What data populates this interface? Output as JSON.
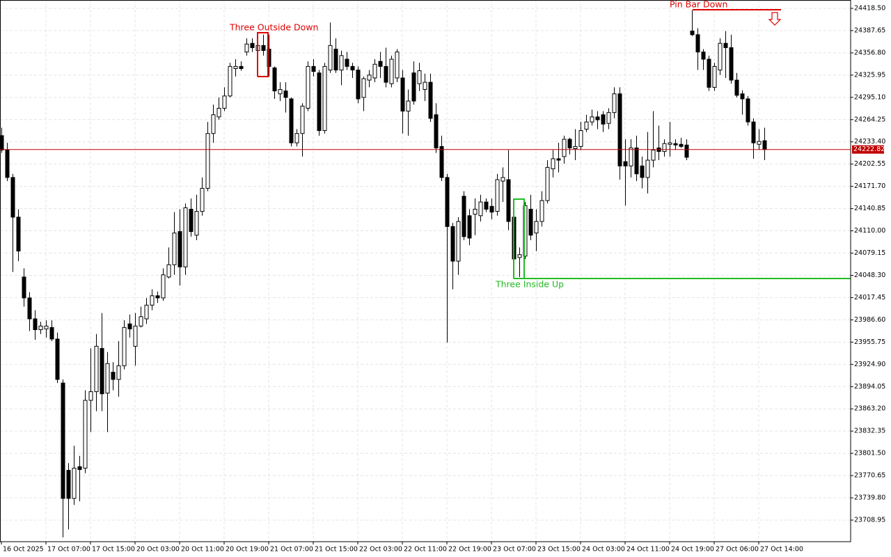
{
  "chart_data": {
    "type": "candlestick",
    "categories": [
      "16 Oct 2025",
      null,
      null,
      null,
      null,
      null,
      null,
      null,
      "17 Oct 07:00",
      null,
      null,
      null,
      null,
      null,
      null,
      null,
      "17 Oct 15:00",
      null,
      null,
      null,
      null,
      null,
      null,
      null,
      "20 Oct 03:00",
      null,
      null,
      null,
      null,
      null,
      null,
      null,
      "20 Oct 11:00",
      null,
      null,
      null,
      null,
      null,
      null,
      null,
      "20 Oct 19:00",
      null,
      null,
      null,
      null,
      null,
      null,
      null,
      "21 Oct 07:00",
      null,
      null,
      null,
      null,
      null,
      null,
      null,
      "21 Oct 15:00",
      null,
      null,
      null,
      null,
      null,
      null,
      null,
      "22 Oct 03:00",
      null,
      null,
      null,
      null,
      null,
      null,
      null,
      "22 Oct 11:00",
      null,
      null,
      null,
      null,
      null,
      null,
      null,
      "22 Oct 19:00",
      null,
      null,
      null,
      null,
      null,
      null,
      null,
      "23 Oct 07:00",
      null,
      null,
      null,
      null,
      null,
      null,
      null,
      "23 Oct 15:00",
      null,
      null,
      null,
      null,
      null,
      null,
      null,
      "24 Oct 03:00",
      null,
      null,
      null,
      null,
      null,
      null,
      null,
      "24 Oct 11:00",
      null,
      null,
      null,
      null,
      null,
      null,
      null,
      "24 Oct 19:00",
      null,
      null,
      null,
      null,
      null,
      null,
      null,
      "27 Oct 06:00",
      null,
      null,
      null,
      null,
      null,
      null,
      null,
      "27 Oct 14:00",
      null
    ],
    "open": [
      24242,
      24222,
      24184,
      24129,
      24046,
      24017,
      23988,
      23973,
      23974,
      23976,
      23960,
      23899,
      23778,
      23739,
      23783,
      23781,
      23875,
      23887,
      23947,
      23885,
      23914,
      23904,
      23923,
      23981,
      23950,
      23978,
      23988,
      24007,
      24020,
      24017,
      24046,
      24063,
      24109,
      24060,
      24140,
      24104,
      24137,
      24169,
      24245,
      24268,
      24280,
      24297,
      24335,
      24338,
      24358,
      24370,
      24360,
      24367,
      24362,
      24336,
      24300,
      24304,
      24293,
      24232,
      24245,
      24280,
      24338,
      24329,
      24249,
      24333,
      24362,
      24333,
      24348,
      24338,
      24333,
      24295,
      24319,
      24322,
      24345,
      24338,
      24314,
      24322,
      24322,
      24276,
      24329,
      24314,
      24306,
      24316,
      24271,
      24227,
      24184,
      24116,
      24068,
      24158,
      24131,
      24133,
      24131,
      24150,
      24144,
      24137,
      24179,
      24181,
      24129,
      24073,
      24075,
      24140,
      24107,
      24123,
      24152,
      24196,
      24210,
      24213,
      24237,
      24224,
      24227,
      24251,
      24261,
      24268,
      24271,
      24259,
      24274,
      24300,
      24206,
      24200,
      24225,
      24200,
      24184,
      24208,
      24225,
      24220,
      24230,
      24231,
      24230,
      24229,
      24387,
      24382,
      24358,
      24348,
      24309,
      24333,
      24370,
      24364,
      24319,
      24300,
      24293,
      24261,
      24230,
      24235
    ],
    "high": [
      24253,
      24232,
      24189,
      24140,
      24058,
      24025,
      24000,
      23984,
      23986,
      23986,
      23969,
      23904,
      23788,
      23812,
      23798,
      23889,
      23947,
      23967,
      23996,
      23942,
      23928,
      23957,
      23986,
      23994,
      23996,
      24005,
      24017,
      24029,
      24026,
      24058,
      24087,
      24136,
      24140,
      24148,
      24155,
      24160,
      24184,
      24261,
      24285,
      24295,
      24309,
      24343,
      24348,
      24345,
      24377,
      24377,
      24382,
      24382,
      24382,
      24338,
      24316,
      24316,
      24295,
      24251,
      24287,
      24345,
      24348,
      24333,
      24343,
      24399,
      24377,
      24360,
      24358,
      24343,
      24338,
      24324,
      24333,
      24348,
      24358,
      24364,
      24353,
      24362,
      24333,
      24306,
      24345,
      24343,
      24328,
      24328,
      24287,
      24242,
      24189,
      24121,
      24129,
      24165,
      24140,
      24155,
      24160,
      24155,
      24155,
      24189,
      24198,
      24222,
      24155,
      24087,
      24150,
      24160,
      24140,
      24165,
      24208,
      24222,
      24232,
      24242,
      24239,
      24251,
      24261,
      24271,
      24278,
      24276,
      24276,
      24280,
      24309,
      24309,
      24237,
      24237,
      24242,
      24213,
      24247,
      24276,
      24256,
      24237,
      24261,
      24237,
      24239,
      24237,
      24416,
      24391,
      24362,
      24353,
      24343,
      24377,
      24387,
      24382,
      24329,
      24305,
      24297,
      24266,
      24251,
      24253
    ],
    "low": [
      24218,
      24179,
      24053,
      24068,
      24005,
      23971,
      23959,
      23967,
      23962,
      23957,
      23899,
      23685,
      23696,
      23730,
      23735,
      23774,
      23831,
      23860,
      23860,
      23831,
      23889,
      23880,
      23918,
      23962,
      23923,
      23976,
      23981,
      24000,
      24010,
      24013,
      24044,
      24049,
      24034,
      24049,
      24102,
      24097,
      24131,
      24165,
      24232,
      24264,
      24276,
      24295,
      24324,
      24332,
      24353,
      24358,
      24326,
      24353,
      24324,
      24293,
      24290,
      24274,
      24227,
      24227,
      24213,
      24276,
      24324,
      24242,
      24245,
      24329,
      24329,
      24312,
      24333,
      24322,
      24287,
      24276,
      24309,
      24316,
      24322,
      24309,
      24309,
      24316,
      24245,
      24242,
      24285,
      24304,
      24290,
      24261,
      24218,
      24179,
      23955,
      24029,
      24049,
      24097,
      24090,
      24104,
      24123,
      24136,
      24126,
      24131,
      24150,
      24111,
      24046,
      24046,
      24071,
      24097,
      24082,
      24116,
      24148,
      24184,
      24191,
      24203,
      24216,
      24208,
      24222,
      24247,
      24256,
      24251,
      24247,
      24251,
      24266,
      24181,
      24145,
      24184,
      24179,
      24169,
      24162,
      24198,
      24208,
      24213,
      24213,
      24222,
      24225,
      24208,
      24380,
      24333,
      24333,
      24304,
      24304,
      24326,
      24322,
      24314,
      24295,
      24271,
      24256,
      24210,
      24222,
      24208
    ],
    "close": [
      24222,
      24184,
      24129,
      24082,
      24017,
      23988,
      23973,
      23978,
      23978,
      23960,
      23904,
      23739,
      23739,
      23781,
      23779,
      23875,
      23887,
      23950,
      23884,
      23926,
      23904,
      23923,
      23976,
      23974,
      23978,
      23991,
      24007,
      24020,
      24017,
      24049,
      24063,
      24107,
      24060,
      24142,
      24109,
      24137,
      24169,
      24245,
      24271,
      24280,
      24297,
      24338,
      24338,
      24335,
      24369,
      24364,
      24367,
      24360,
      24338,
      24304,
      24306,
      24295,
      24232,
      24245,
      24283,
      24338,
      24331,
      24249,
      24338,
      24367,
      24333,
      24353,
      24338,
      24333,
      24293,
      24321,
      24326,
      24341,
      24338,
      24316,
      24348,
      24358,
      24276,
      24290,
      24290,
      24332,
      24316,
      24266,
      24225,
      24184,
      24116,
      24068,
      24123,
      24102,
      24100,
      24140,
      24150,
      24140,
      24136,
      24181,
      24184,
      24123,
      24071,
      24077,
      24145,
      24104,
      24123,
      24152,
      24198,
      24210,
      24208,
      24237,
      24225,
      24227,
      24249,
      24261,
      24268,
      24264,
      24258,
      24274,
      24300,
      24200,
      24200,
      24225,
      24189,
      24184,
      24208,
      24222,
      24220,
      24231,
      24232,
      24229,
      24227,
      24212,
      24382,
      24358,
      24348,
      24309,
      24338,
      24370,
      24364,
      24319,
      24298,
      24293,
      24261,
      24232,
      24234,
      24222.82
    ],
    "up_color": "#ffffff",
    "down_color": "#000000",
    "ylim": [
      23679.02,
      24430.08
    ],
    "yticks": [
      {
        "value": 24418.5,
        "label": "24418.50"
      },
      24387.65,
      {
        "value": 24356.8,
        "label": "24356.80"
      },
      24325.95,
      {
        "value": 24295.1,
        "label": "24295.10"
      },
      24264.25,
      {
        "value": 24233.4,
        "label": "24233.40"
      },
      24202.55,
      {
        "value": 24171.7,
        "label": "24171.70"
      },
      24140.85,
      {
        "value": 24110,
        "label": "24110.00"
      },
      24079.15,
      {
        "value": 24048.3,
        "label": "24048.30"
      },
      24017.45,
      {
        "value": 23986.6,
        "label": "23986.60"
      },
      23955.75,
      {
        "value": 23924.9,
        "label": "23924.90"
      },
      23894.05,
      {
        "value": 23863.2,
        "label": "23863.20"
      },
      23832.35,
      {
        "value": 23801.5,
        "label": "23801.50"
      },
      23770.65,
      {
        "value": 23739.8,
        "label": "23739.80"
      },
      23708.95
    ],
    "last_price": 24222.82,
    "grid": true,
    "annotations": [
      "Three Outside Down",
      "Pin Bar Down",
      "Three Inside Up"
    ]
  }
}
